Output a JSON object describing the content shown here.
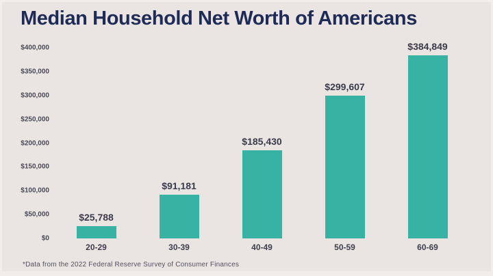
{
  "title": "Median Household Net Worth of Americans",
  "footnote": "*Data from the 2022 Federal Reserve Survey of Consumer Finances",
  "colors": {
    "background": "#eae5e3",
    "bar": "#38b2a2",
    "title": "#1d2b56",
    "value_label": "#3a3a48",
    "category_label": "#3f3f4c",
    "tick_label": "#494956",
    "footnote_text": "#50505e"
  },
  "chart_data": {
    "type": "bar",
    "title": "Median Household Net Worth of Americans",
    "categories": [
      "20-29",
      "30-39",
      "40-49",
      "50-59",
      "60-69"
    ],
    "values": [
      25788,
      91181,
      185430,
      299607,
      384849
    ],
    "value_labels": [
      "$25,788",
      "$91,181",
      "$185,430",
      "$299,607",
      "$384,849"
    ],
    "yticks": [
      "$400,000",
      "$350,000",
      "$300,000",
      "$250,000",
      "$200,000",
      "$150,000",
      "$100,000",
      "$50,000",
      "$0"
    ],
    "ylim": [
      0,
      400000
    ],
    "xlabel": "",
    "ylabel": "",
    "grid": false,
    "legend": null,
    "annotation": "*Data from the 2022 Federal Reserve Survey of Consumer Finances"
  }
}
